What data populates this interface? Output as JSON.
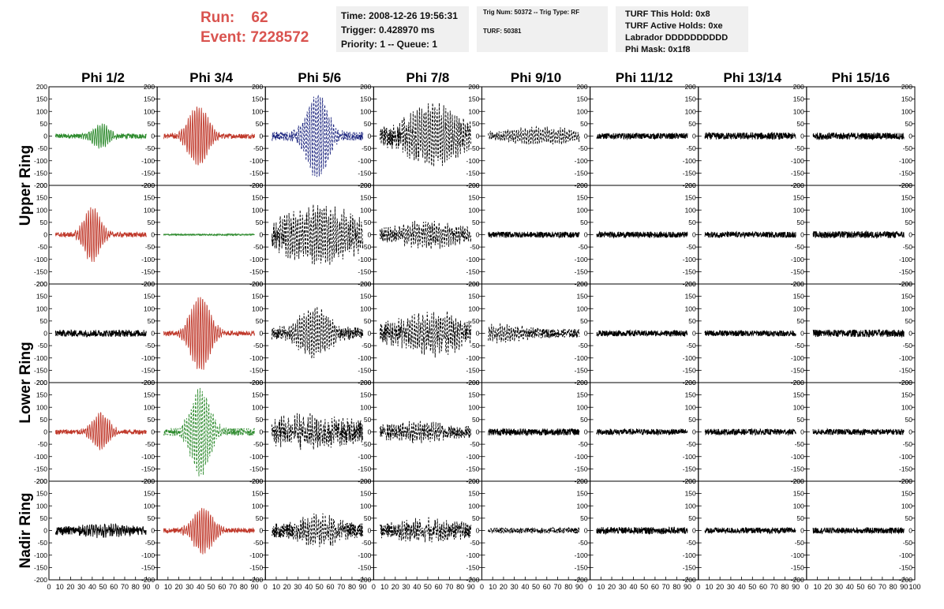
{
  "header": {
    "run_label": "Run:",
    "run_value": "62",
    "event_label": "Event:",
    "event_value": "7228572",
    "time": "Time: 2008-12-26 19:56:31",
    "trigger": "Trigger: 0.428970 ms",
    "priority": "Priority: 1 -- Queue: 1",
    "trig_num": "Trig Num: 50372 -- Trig Type: RF",
    "turf": "TURF: 50381",
    "turf_hold": "TURF This Hold: 0x8",
    "turf_active": "TURF Active Holds: 0xe",
    "labrador": "Labrador DDDDDDDDDD",
    "phi_mask": "Phi Mask: 0x1f8"
  },
  "chart_data": {
    "type": "line",
    "title": "",
    "columns": [
      "Phi 1/2",
      "Phi 3/4",
      "Phi 5/6",
      "Phi 7/8",
      "Phi 9/10",
      "Phi 11/12",
      "Phi 13/14",
      "Phi 15/16"
    ],
    "rows": [
      "Upper Ring",
      "Upper Ring",
      "Lower Ring",
      "Lower Ring",
      "Nadir Ring"
    ],
    "row_labels": [
      {
        "text": "Upper Ring",
        "spans_rows": [
          0,
          1
        ]
      },
      {
        "text": "Lower Ring",
        "spans_rows": [
          2,
          3
        ]
      },
      {
        "text": "Nadir Ring",
        "spans_rows": [
          4,
          4
        ]
      }
    ],
    "xlim": [
      0,
      100
    ],
    "ylim": [
      -200,
      200
    ],
    "y_ticks": [
      200,
      150,
      100,
      50,
      0,
      -50,
      -100,
      -150,
      -200
    ],
    "x_ticks": [
      0,
      10,
      20,
      30,
      40,
      50,
      60,
      70,
      80,
      90,
      100
    ],
    "colors": {
      "green": "#2e8b2e",
      "red": "#c0392b",
      "blue": "#1a237e",
      "black": "#000000"
    },
    "panels": [
      [
        {
          "color": "green",
          "dash": false,
          "noise": 10,
          "pulse": 45,
          "center": 48,
          "width": 10
        },
        {
          "color": "red",
          "dash": false,
          "noise": 10,
          "pulse": 120,
          "center": 38,
          "width": 12
        },
        {
          "color": "blue",
          "dash": true,
          "noise": 18,
          "pulse": 170,
          "center": 48,
          "width": 13
        },
        {
          "color": "black",
          "dash": true,
          "noise": 40,
          "pulse": 110,
          "center": 55,
          "width": 28
        },
        {
          "color": "black",
          "dash": true,
          "noise": 12,
          "pulse": 30,
          "center": 55,
          "width": 40
        },
        {
          "color": "black",
          "dash": false,
          "noise": 12,
          "pulse": 0,
          "center": 50,
          "width": 10
        },
        {
          "color": "black",
          "dash": false,
          "noise": 14,
          "pulse": 0,
          "center": 50,
          "width": 10
        },
        {
          "color": "black",
          "dash": false,
          "noise": 14,
          "pulse": 0,
          "center": 50,
          "width": 10
        }
      ],
      [
        {
          "color": "red",
          "dash": false,
          "noise": 10,
          "pulse": 110,
          "center": 40,
          "width": 10
        },
        {
          "color": "green",
          "dash": false,
          "noise": 3,
          "pulse": 0,
          "center": 50,
          "width": 10
        },
        {
          "color": "black",
          "dash": true,
          "noise": 45,
          "pulse": 90,
          "center": 50,
          "width": 40
        },
        {
          "color": "black",
          "dash": true,
          "noise": 25,
          "pulse": 40,
          "center": 50,
          "width": 30
        },
        {
          "color": "black",
          "dash": false,
          "noise": 12,
          "pulse": 0,
          "center": 50,
          "width": 10
        },
        {
          "color": "black",
          "dash": false,
          "noise": 12,
          "pulse": 0,
          "center": 50,
          "width": 10
        },
        {
          "color": "black",
          "dash": false,
          "noise": 12,
          "pulse": 0,
          "center": 50,
          "width": 10
        },
        {
          "color": "black",
          "dash": false,
          "noise": 14,
          "pulse": 0,
          "center": 50,
          "width": 10
        }
      ],
      [
        {
          "color": "black",
          "dash": false,
          "noise": 14,
          "pulse": 0,
          "center": 50,
          "width": 10
        },
        {
          "color": "red",
          "dash": false,
          "noise": 10,
          "pulse": 150,
          "center": 40,
          "width": 12
        },
        {
          "color": "black",
          "dash": true,
          "noise": 25,
          "pulse": 90,
          "center": 45,
          "width": 18
        },
        {
          "color": "black",
          "dash": true,
          "noise": 40,
          "pulse": 60,
          "center": 55,
          "width": 35
        },
        {
          "color": "black",
          "dash": true,
          "noise": 18,
          "pulse": 25,
          "center": 20,
          "width": 25
        },
        {
          "color": "black",
          "dash": false,
          "noise": 12,
          "pulse": 0,
          "center": 50,
          "width": 10
        },
        {
          "color": "black",
          "dash": false,
          "noise": 12,
          "pulse": 0,
          "center": 50,
          "width": 10
        },
        {
          "color": "black",
          "dash": false,
          "noise": 15,
          "pulse": 0,
          "center": 50,
          "width": 10
        }
      ],
      [
        {
          "color": "red",
          "dash": false,
          "noise": 10,
          "pulse": 75,
          "center": 48,
          "width": 10
        },
        {
          "color": "green",
          "dash": true,
          "noise": 15,
          "pulse": 170,
          "center": 40,
          "width": 12
        },
        {
          "color": "black",
          "dash": true,
          "noise": 45,
          "pulse": 40,
          "center": 40,
          "width": 35
        },
        {
          "color": "black",
          "dash": true,
          "noise": 25,
          "pulse": 25,
          "center": 40,
          "width": 30
        },
        {
          "color": "black",
          "dash": false,
          "noise": 14,
          "pulse": 0,
          "center": 50,
          "width": 10
        },
        {
          "color": "black",
          "dash": false,
          "noise": 12,
          "pulse": 0,
          "center": 50,
          "width": 10
        },
        {
          "color": "black",
          "dash": false,
          "noise": 12,
          "pulse": 0,
          "center": 50,
          "width": 10
        },
        {
          "color": "black",
          "dash": false,
          "noise": 12,
          "pulse": 0,
          "center": 50,
          "width": 10
        }
      ],
      [
        {
          "color": "black",
          "dash": false,
          "noise": 18,
          "pulse": 15,
          "center": 50,
          "width": 20
        },
        {
          "color": "red",
          "dash": false,
          "noise": 10,
          "pulse": 90,
          "center": 42,
          "width": 12
        },
        {
          "color": "black",
          "dash": true,
          "noise": 30,
          "pulse": 50,
          "center": 50,
          "width": 20
        },
        {
          "color": "black",
          "dash": true,
          "noise": 30,
          "pulse": 25,
          "center": 50,
          "width": 30
        },
        {
          "color": "black",
          "dash": true,
          "noise": 12,
          "pulse": 0,
          "center": 50,
          "width": 10
        },
        {
          "color": "black",
          "dash": false,
          "noise": 14,
          "pulse": 0,
          "center": 50,
          "width": 10
        },
        {
          "color": "black",
          "dash": false,
          "noise": 12,
          "pulse": 0,
          "center": 50,
          "width": 10
        },
        {
          "color": "black",
          "dash": false,
          "noise": 12,
          "pulse": 0,
          "center": 50,
          "width": 10
        }
      ]
    ]
  }
}
